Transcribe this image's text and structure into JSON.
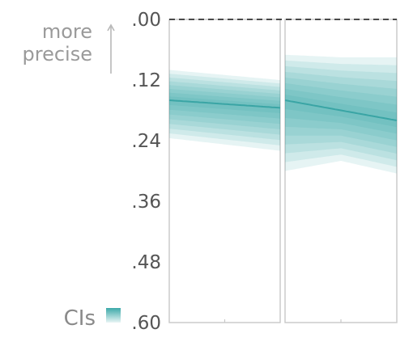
{
  "chart_data": {
    "type": "area",
    "y_axis": {
      "ticks": [
        ".00",
        ".12",
        ".24",
        ".36",
        ".48",
        ".60"
      ],
      "tick_values": [
        0,
        0.12,
        0.24,
        0.36,
        0.48,
        0.6
      ],
      "range": [
        0,
        0.6
      ],
      "inverted": true,
      "hint_lines": [
        "more",
        "precise"
      ],
      "hint_arrow": "up"
    },
    "reference_line": {
      "value": 0,
      "style": "dashed"
    },
    "legend": {
      "label": "CIs",
      "placement": "bottom-left"
    },
    "band_color": "#1a9a9a",
    "line_color": "#3aa5a5",
    "band_levels": 8,
    "panels": [
      {
        "x": [
          0,
          1
        ],
        "center": [
          0.16,
          0.175
        ],
        "band_upper": [
          0.1,
          0.12
        ],
        "band_lower": [
          0.235,
          0.26
        ]
      },
      {
        "x": [
          0,
          0.5,
          1
        ],
        "center": [
          0.16,
          0.18,
          0.2
        ],
        "band_upper": [
          0.07,
          0.075,
          0.075
        ],
        "band_lower": [
          0.3,
          0.28,
          0.305
        ]
      }
    ]
  }
}
